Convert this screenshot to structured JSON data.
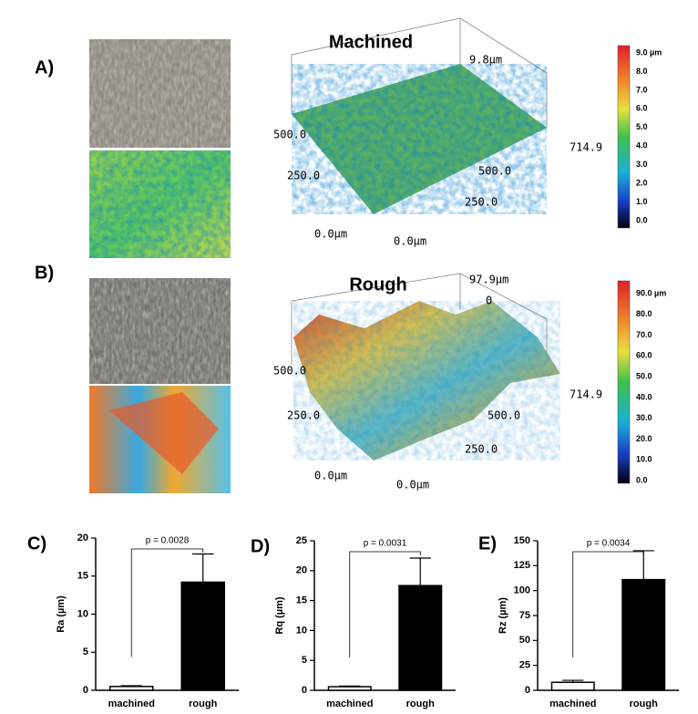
{
  "panels": {
    "A": {
      "label": "A)",
      "title": "Machined",
      "axis_labels": [
        "9.8µm",
        "500.0",
        "714.9",
        "250.0",
        "500.0",
        "250.0",
        "0.0µm",
        "0.0µm"
      ],
      "colorbar_labels": [
        "9.0 µm",
        "8.0",
        "7.0",
        "6.0",
        "5.0",
        "4.0",
        "3.0",
        "2.0",
        "1.0",
        "0.0"
      ]
    },
    "B": {
      "label": "B)",
      "title": "Rough",
      "axis_labels": [
        "97.9µm",
        "0",
        "500.0",
        "714.9",
        "250.0",
        "500.0",
        "250.0",
        "0.0µm",
        "0.0µm"
      ],
      "colorbar_labels": [
        "90.0 µm",
        "80.0",
        "70.0",
        "60.0",
        "50.0",
        "40.0",
        "30.0",
        "20.0",
        "10.0",
        "0.0"
      ]
    }
  },
  "chart_data": [
    {
      "type": "bar",
      "panel_label": "C)",
      "y_label": "Ra (µm)",
      "categories": [
        "machined",
        "rough"
      ],
      "values": [
        0.5,
        14.2
      ],
      "errors": [
        0.1,
        3.7
      ],
      "colors": [
        "#ffffff",
        "#000000"
      ],
      "annotation": "p = 0.0028",
      "ylim": [
        0,
        20
      ],
      "yticks": [
        0,
        5,
        10,
        15,
        20
      ]
    },
    {
      "type": "bar",
      "panel_label": "D)",
      "y_label": "Rq (µm)",
      "categories": [
        "machined",
        "rough"
      ],
      "values": [
        0.6,
        17.5
      ],
      "errors": [
        0.1,
        4.6
      ],
      "colors": [
        "#ffffff",
        "#000000"
      ],
      "annotation": "p = 0.0031",
      "ylim": [
        0,
        25
      ],
      "yticks": [
        0,
        5,
        10,
        15,
        20,
        25
      ]
    },
    {
      "type": "bar",
      "panel_label": "E)",
      "y_label": "Rz (µm)",
      "categories": [
        "machined",
        "rough"
      ],
      "values": [
        8,
        111
      ],
      "errors": [
        2,
        29
      ],
      "colors": [
        "#ffffff",
        "#000000"
      ],
      "annotation": "p = 0.0034",
      "ylim": [
        0,
        150
      ],
      "yticks": [
        0,
        25,
        50,
        75,
        100,
        125,
        150
      ]
    }
  ]
}
